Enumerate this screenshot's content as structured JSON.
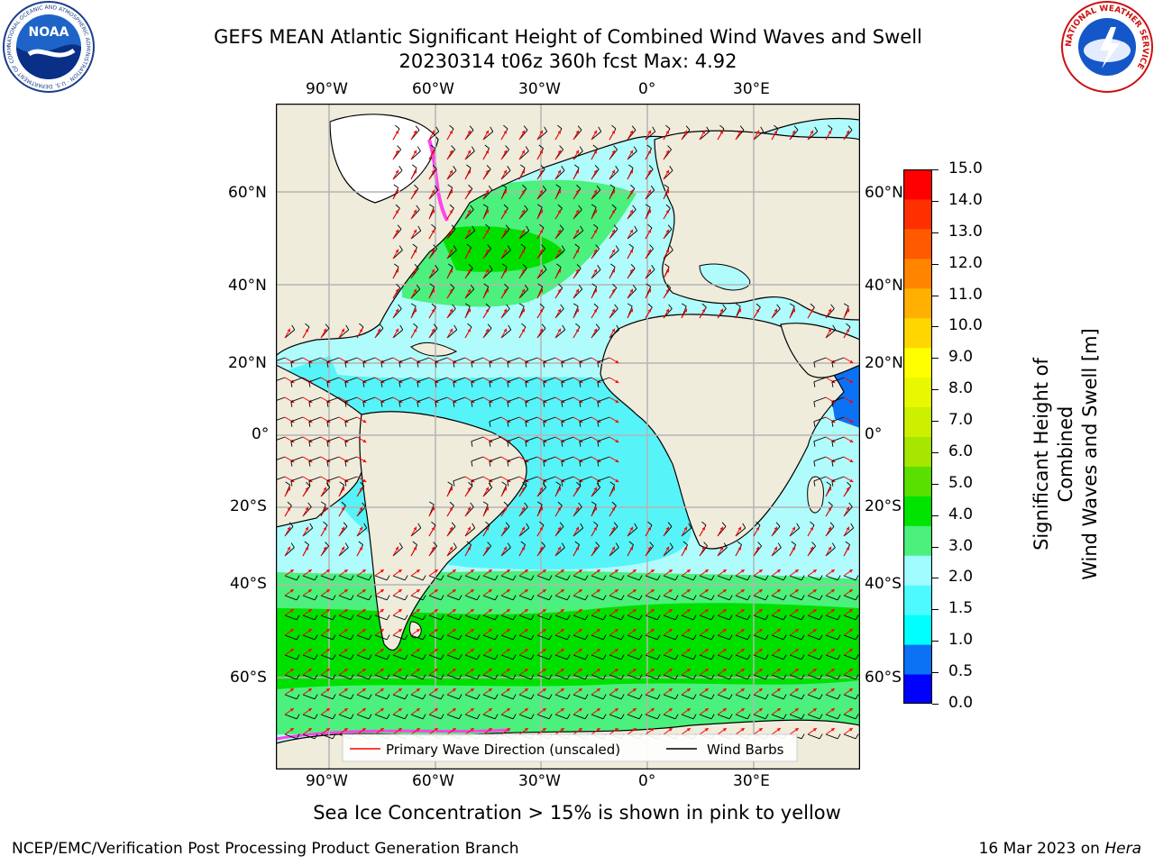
{
  "header": {
    "title_line1": "GEFS MEAN Atlantic Significant Height of Combined Wind Waves and Swell",
    "title_line2": "20230314 t06z 360h fcst   Max: 4.92",
    "noaa_logo_text": "NOAA",
    "noaa_ring_text": "NATIONAL OCEANIC AND ATMOSPHERIC ADMINISTRATION · U.S. DEPARTMENT OF COMMERCE",
    "nws_ring_text": "NATIONAL WEATHER SERVICE"
  },
  "map": {
    "lon_labels": [
      "90°W",
      "60°W",
      "30°W",
      "0°",
      "30°E"
    ],
    "lat_labels": [
      "60°N",
      "40°N",
      "20°N",
      "0°",
      "20°S",
      "40°S",
      "60°S"
    ],
    "legend": {
      "wave_direction": "Primary Wave Direction (unscaled)",
      "wind_barbs": "Wind Barbs"
    },
    "caption": "Sea Ice Concentration > 15% is shown in pink to yellow",
    "colors": {
      "land": "#efecdc",
      "ocean_low": "#b0fcfc",
      "ocean_mid": "#56f4f8",
      "ocean_high": "#4cf07c",
      "ocean_peak": "#00e000",
      "arrow": "#ff0000",
      "barb": "#000000",
      "ice": "#ff44ee"
    }
  },
  "colorbar": {
    "label_line1": "Significant Height of Combined",
    "label_line2": "Wind Waves and Swell [m]",
    "ticks": [
      "15.0",
      "14.0",
      "13.0",
      "12.0",
      "11.0",
      "10.0",
      "9.0",
      "8.0",
      "7.0",
      "6.0",
      "5.0",
      "4.0",
      "3.0",
      "2.0",
      "1.5",
      "1.0",
      "0.5",
      "0.0"
    ],
    "colors": [
      "#0000ff",
      "#0b72f5",
      "#00ffff",
      "#4dfaff",
      "#a0fcff",
      "#4cf07c",
      "#00e400",
      "#5ae000",
      "#a6e600",
      "#ccf000",
      "#e8f800",
      "#ffff00",
      "#ffd600",
      "#ffb000",
      "#ff8400",
      "#ff5a00",
      "#ff3000",
      "#ff0000"
    ]
  },
  "footer": {
    "left": "NCEP/EMC/Verification Post Processing Product Generation Branch",
    "date": "16 Mar 2023 on ",
    "host": "Hera"
  }
}
